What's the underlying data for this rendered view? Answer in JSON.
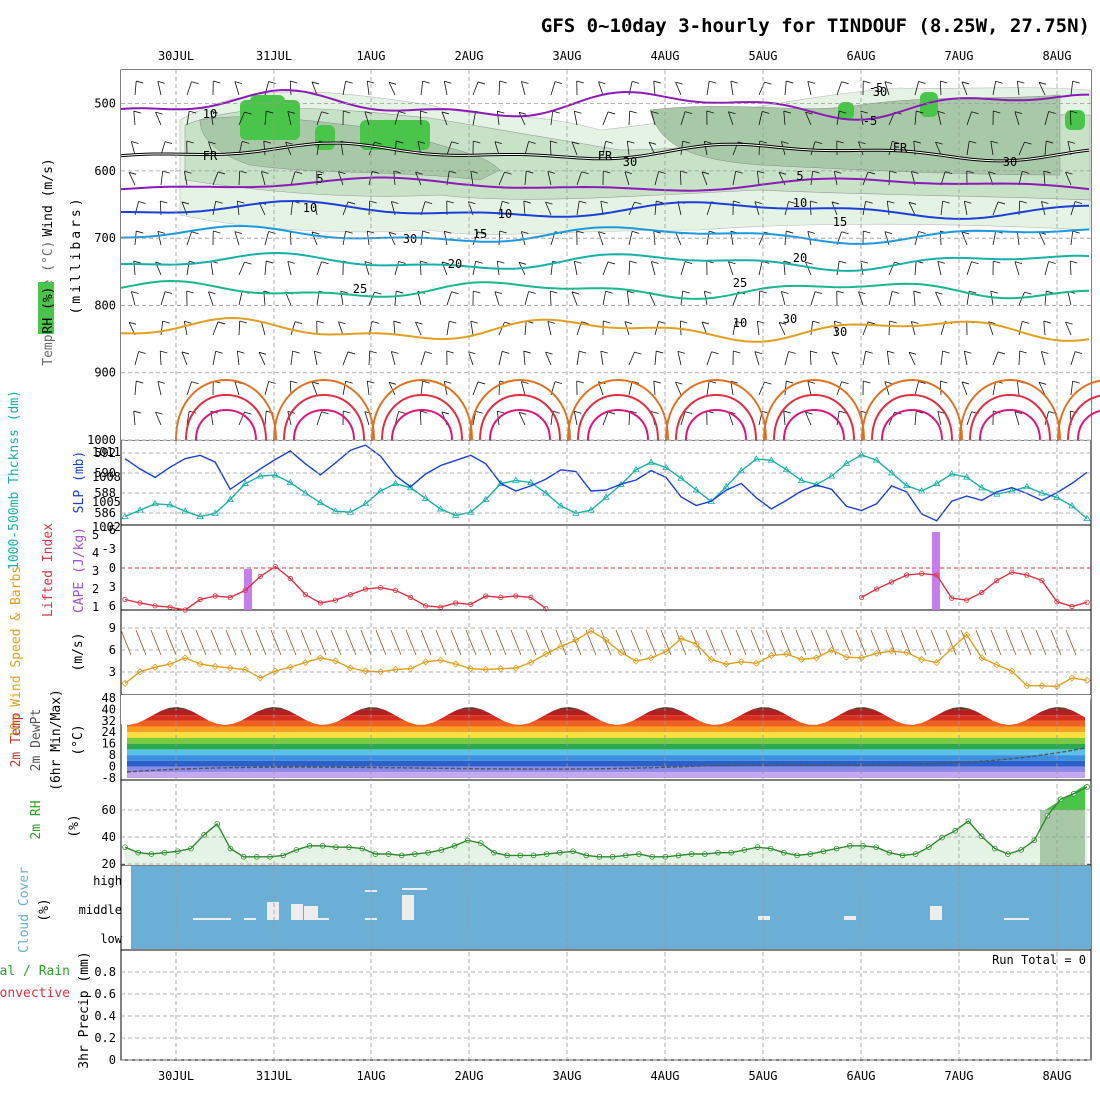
{
  "title": "GFS 0~10day 3-hourly for TINDOUF (8.25W, 27.75N)",
  "colors": {
    "purple": "#8B1AB8",
    "blue": "#1A3FD8",
    "cyan": "#1A9AE0",
    "teal": "#17B0A8",
    "green": "#19B88A",
    "orange": "#E0A020",
    "darkorange": "#E07020",
    "red": "#E03040",
    "magenta": "#E0157A",
    "cloudbg": "#6BAED6",
    "rhgreen": "#49C649"
  },
  "dates": [
    "30JUL",
    "31JUL",
    "1AUG",
    "2AUG",
    "3AUG",
    "4AUG",
    "5AUG",
    "6AUG",
    "7AUG",
    "8AUG"
  ],
  "panels": {
    "upper": {
      "label_wind": "Wind (m/s)",
      "label_temp": "Temperature (°C)",
      "label_rh": "RH (%)",
      "ylabel": "(millibars)",
      "ticks": [
        "500",
        "600",
        "700",
        "800",
        "900",
        "1000"
      ],
      "contour_labels": [
        "-5",
        "5",
        "10",
        "15",
        "20",
        "25",
        "30",
        "FR",
        "FR",
        "FR",
        "5",
        "10",
        "15",
        "20",
        "25",
        "30",
        "-5",
        "10",
        "30",
        "30",
        "10",
        "10",
        "30",
        "30"
      ]
    },
    "thickness": {
      "label_thick": "1000-500mb Thcknss (dm)",
      "label_slp": "SLP (mb)",
      "ticks_left": [
        "592",
        "590",
        "588",
        "586"
      ],
      "ticks_right": [
        "1011",
        "1008",
        "1005",
        "1002"
      ]
    },
    "cape": {
      "label_li": "Lifted Index",
      "label_cape": "CAPE (J/kg)",
      "ticks_left": [
        "-6",
        "-3",
        "0",
        "3",
        "6"
      ],
      "ticks_right": [
        "5",
        "4",
        "3",
        "2",
        "1"
      ]
    },
    "wind10": {
      "label": "10m Wind Speed & Barbs",
      "unit": "(m/s)",
      "ticks": [
        "9",
        "6",
        "3"
      ]
    },
    "temp2m": {
      "label1": "2m Temp",
      "label2": "2m DewPt",
      "label3": "(6hr Min/Max)",
      "unit": "(°C)",
      "ticks": [
        "48",
        "40",
        "32",
        "24",
        "16",
        "8",
        "0",
        "-8"
      ]
    },
    "rh2m": {
      "label": "2m RH",
      "unit": "(%)",
      "ticks": [
        "60",
        "40",
        "20"
      ]
    },
    "cloud": {
      "label": "Cloud Cover",
      "unit": "(%)",
      "levels": [
        "high",
        "middle",
        "low"
      ]
    },
    "precip": {
      "label1": "Total / Rain",
      "label2": "Convective",
      "ylabel": "3hr Precip (mm)",
      "run_total": "Run Total = 0",
      "ticks": [
        "0.8",
        "0.6",
        "0.4",
        "0.2",
        "0"
      ]
    }
  },
  "chart_data": [
    {
      "type": "line",
      "title": "1000-500mb Thickness",
      "ylim": [
        585,
        593
      ],
      "series": [
        {
          "name": "1000-500mb Thcknss (dm)",
          "values": [
            585.8,
            586.4,
            587.0,
            586.9,
            586.3,
            585.8,
            586.1,
            587.4,
            588.9,
            589.6,
            589.7,
            589.0,
            588.0,
            587.1,
            586.3,
            586.2,
            587.0,
            588.2,
            588.9,
            588.5,
            587.5,
            586.5,
            585.9,
            586.2,
            587.4,
            588.9,
            589.2,
            589.0,
            588.0,
            586.8,
            586.1,
            586.4,
            587.6,
            588.8,
            590.2,
            590.9,
            590.4,
            589.4,
            588.3,
            587.2,
            588.6,
            590.1,
            591.2,
            591.1,
            590.2,
            589.2,
            588.8,
            589.6,
            590.8,
            591.6,
            591.1,
            589.9,
            588.7,
            588.2,
            588.9,
            589.8,
            589.5,
            588.5,
            587.9,
            588.2,
            588.6,
            588.0,
            587.6,
            586.8,
            585.6
          ]
        }
      ]
    },
    {
      "type": "line",
      "title": "SLP",
      "ylim": [
        1002,
        1012
      ],
      "series": [
        {
          "name": "SLP (mb)",
          "values": [
            1009.8,
            1008.6,
            1007.6,
            1008.8,
            1009.8,
            1010.2,
            1009.4,
            1006.2,
            1007.4,
            1008.6,
            1009.7,
            1010.7,
            1009.2,
            1007.9,
            1009.3,
            1010.8,
            1011.4,
            1010.1,
            1007.8,
            1006.5,
            1008.0,
            1009.0,
            1009.6,
            1010.2,
            1009.2,
            1006.9,
            1006.0,
            1006.6,
            1007.4,
            1008.5,
            1008.3,
            1006.0,
            1006.1,
            1006.8,
            1007.3,
            1008.4,
            1007.6,
            1005.3,
            1004.3,
            1004.8,
            1006.1,
            1006.9,
            1005.2,
            1003.9,
            1004.9,
            1006.0,
            1006.7,
            1006.2,
            1004.2,
            1003.7,
            1004.5,
            1006.6,
            1005.9,
            1003.3,
            1002.5,
            1004.8,
            1005.4,
            1004.9,
            1005.9,
            1006.4,
            1005.7,
            1004.9,
            1005.8,
            1006.9,
            1008.2
          ]
        }
      ]
    },
    {
      "type": "line",
      "title": "Lifted Index",
      "ylim": [
        -6,
        6
      ],
      "series": [
        {
          "name": "Lifted Index",
          "values": [
            4.5,
            5.0,
            5.4,
            5.6,
            6.0,
            4.5,
            4.0,
            4.2,
            3.2,
            1.2,
            -0.2,
            1.5,
            3.8,
            5.0,
            4.6,
            3.8,
            3.0,
            2.8,
            3.2,
            4.2,
            5.4,
            5.6,
            5.0,
            5.2,
            4.0,
            4.2,
            4.0,
            4.2,
            5.8,
            null,
            null,
            null,
            null,
            null,
            null,
            null,
            null,
            null,
            null,
            null,
            null,
            null,
            null,
            null,
            null,
            null,
            null,
            null,
            null,
            4.2,
            3.0,
            2.0,
            1.0,
            0.8,
            1.0,
            4.3,
            4.6,
            3.5,
            1.8,
            0.6,
            1.0,
            1.8,
            4.8,
            5.5,
            4.9
          ]
        }
      ]
    },
    {
      "type": "bar",
      "title": "CAPE",
      "categories": [
        "31JUL 18Z",
        "6AUG 18Z"
      ],
      "values": [
        3.1,
        5.0
      ],
      "ylim": [
        1,
        5
      ]
    },
    {
      "type": "line",
      "title": "10m Wind Speed",
      "ylim": [
        0,
        11
      ],
      "series": [
        {
          "name": "10m Wind Speed",
          "values": [
            1.5,
            3.0,
            3.6,
            4.0,
            4.8,
            4.0,
            3.7,
            3.5,
            3.3,
            2.2,
            3.1,
            3.6,
            4.2,
            4.8,
            4.4,
            3.5,
            3.1,
            3.0,
            3.3,
            3.4,
            4.3,
            4.5,
            4.0,
            3.4,
            3.3,
            3.4,
            3.5,
            4.2,
            5.3,
            6.3,
            7.1,
            8.3,
            7.1,
            5.5,
            4.4,
            4.8,
            5.6,
            7.3,
            6.6,
            4.6,
            4.0,
            4.3,
            4.1,
            5.1,
            5.3,
            4.6,
            4.8,
            5.8,
            4.9,
            4.8,
            5.4,
            5.7,
            5.5,
            4.6,
            4.2,
            6.0,
            7.8,
            4.8,
            3.9,
            3.1,
            1.2,
            1.2,
            1.1,
            2.2,
            1.9
          ]
        }
      ]
    },
    {
      "type": "line",
      "title": "2m RH",
      "ylim": [
        0,
        60
      ],
      "series": [
        {
          "name": "2m RH",
          "values": [
            13,
            9,
            8,
            9,
            10,
            12,
            22,
            30,
            12,
            6,
            6,
            6,
            7,
            11,
            14,
            14,
            13,
            13,
            12,
            8,
            8,
            7,
            8,
            9,
            11,
            14,
            18,
            16,
            9,
            7,
            7,
            7,
            8,
            9,
            10,
            7,
            6,
            6,
            7,
            8,
            6,
            6,
            7,
            8,
            8,
            9,
            9,
            11,
            13,
            12,
            9,
            7,
            8,
            10,
            12,
            14,
            14,
            13,
            9,
            7,
            8,
            13,
            20,
            25,
            32,
            21,
            12,
            8,
            11,
            18,
            36,
            48,
            52,
            57
          ]
        }
      ]
    }
  ]
}
